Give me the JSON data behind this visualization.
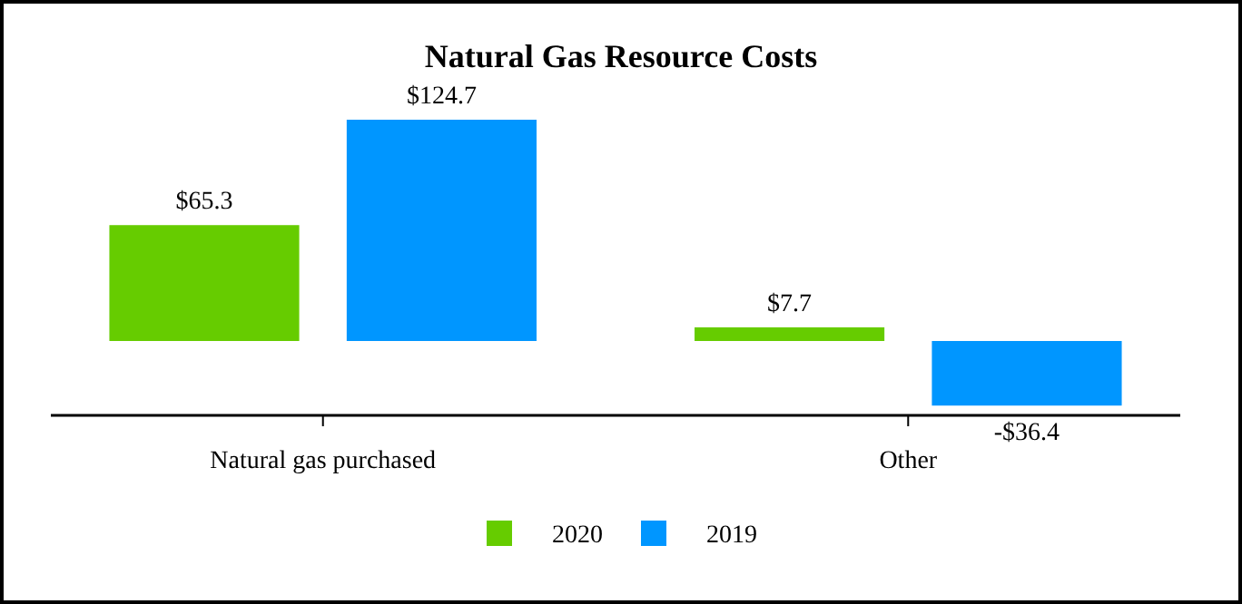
{
  "chart_data": {
    "type": "bar",
    "title": "Natural Gas Resource Costs",
    "categories": [
      "Natural gas purchased",
      "Other"
    ],
    "series": [
      {
        "name": "2020",
        "color": "#66cc00",
        "values": [
          65.3,
          7.7
        ],
        "value_labels": [
          "$65.3",
          "$7.7"
        ]
      },
      {
        "name": "2019",
        "color": "#0096ff",
        "values": [
          124.7,
          -36.4
        ],
        "value_labels": [
          "$124.7",
          "-$36.4"
        ]
      }
    ],
    "legend": "bottom"
  }
}
